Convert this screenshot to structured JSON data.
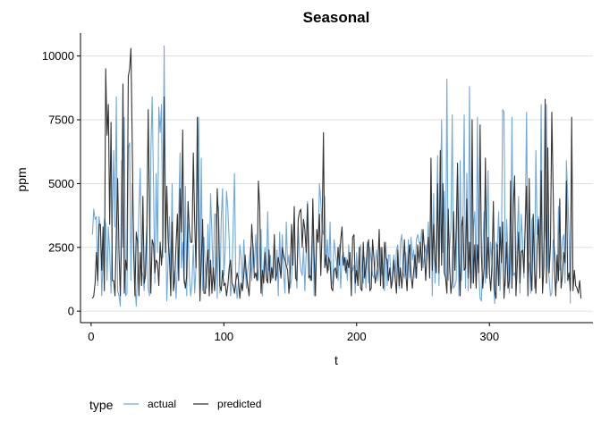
{
  "chart_data": {
    "type": "line",
    "title": "Seasonal",
    "xlabel": "t",
    "ylabel": "ppm",
    "xlim": [
      -8,
      378
    ],
    "ylim": [
      -450,
      10900
    ],
    "xticks": [
      0,
      100,
      200,
      300
    ],
    "xtick_labels": [
      "0",
      "100",
      "200",
      "300"
    ],
    "yticks": [
      0,
      2500,
      5000,
      7500,
      10000
    ],
    "ytick_labels": [
      "0",
      "2500",
      "5000",
      "7500",
      "10000"
    ],
    "grid": "horizontal-major",
    "legend": {
      "title": "type",
      "position": "bottom-left"
    },
    "series": [
      {
        "name": "actual",
        "color": "#6fa8dc",
        "x_start": 1,
        "values": [
          3000,
          4000,
          3600,
          3700,
          1000,
          3700,
          3300,
          600,
          2000,
          3600,
          3400,
          1200,
          3300,
          2300,
          700,
          3500,
          6300,
          3300,
          8400,
          800,
          600,
          200,
          5900,
          2500,
          7600,
          600,
          700,
          6400,
          6600,
          1200,
          5000,
          3000,
          1000,
          200,
          1600,
          4000,
          5600,
          1600,
          1400,
          800,
          2200,
          3300,
          900,
          600,
          6300,
          8400,
          4900,
          1100,
          5400,
          2300,
          8000,
          7000,
          8100,
          2100,
          10400,
          3900,
          400,
          2000,
          3700,
          1200,
          5000,
          1100,
          1600,
          500,
          1700,
          3800,
          6200,
          1700,
          2700,
          1100,
          4900,
          600,
          3400,
          1400,
          600,
          1100,
          2600,
          700,
          1700,
          5900,
          7600,
          900,
          6000,
          800,
          2900,
          1700,
          900,
          3400,
          1500,
          4600,
          3000,
          1200,
          3800,
          3800,
          500,
          4100,
          700,
          3600,
          4800,
          1400,
          2400,
          4700,
          4000,
          2800,
          600,
          1100,
          3300,
          5400,
          1100,
          500,
          1200,
          2600,
          2100,
          1000,
          2800,
          1800,
          900,
          1600,
          1900,
          2500,
          1200,
          2600,
          1700,
          3000,
          1700,
          1200,
          2400,
          3200,
          600,
          1800,
          2500,
          1200,
          3900,
          1600,
          2200,
          1200,
          1700,
          2800,
          1300,
          2400,
          600,
          3100,
          1500,
          3000,
          1500,
          700,
          3500,
          1800,
          2200,
          900,
          1300,
          2800,
          3600,
          1800,
          900,
          3300,
          2200,
          1600,
          1400,
          2500,
          800,
          2300,
          4300,
          2900,
          1200,
          2100,
          4000,
          600,
          1700,
          3200,
          2700,
          5000,
          4300,
          3200,
          3000,
          4500,
          1800,
          2800,
          1600,
          3500,
          1000,
          1200,
          2800,
          2300,
          1900,
          1200,
          2600,
          900,
          2100,
          2300,
          1600,
          2100,
          1200,
          2600,
          1700,
          1500,
          1600,
          1800,
          700,
          2300,
          1000,
          2300,
          2600,
          1600,
          1100,
          2100,
          900,
          2700,
          1100,
          2500,
          2000,
          1400,
          1300,
          1900,
          2400,
          1200,
          1800,
          2500,
          1500,
          1300,
          800,
          2700,
          1000,
          2200,
          2200,
          900,
          1500,
          2200,
          1300,
          2400,
          2600,
          900,
          2700,
          3000,
          1500,
          1300,
          2300,
          1400,
          2800,
          1300,
          2900,
          2000,
          2400,
          1300,
          2800,
          3000,
          2700,
          2600,
          3200,
          1700,
          2100,
          2600,
          2000,
          3500,
          1600,
          4500,
          600,
          4600,
          1100,
          2900,
          6100,
          1000,
          3700,
          7500,
          2300,
          4700,
          1300,
          9100,
          1200,
          2500,
          3200,
          7700,
          900,
          1000,
          1200,
          5400,
          600,
          5900,
          1200,
          2900,
          7700,
          900,
          5400,
          800,
          8800,
          1900,
          1100,
          3300,
          3900,
          1300,
          7600,
          1500,
          500,
          400,
          2300,
          3900,
          1100,
          3100,
          5500,
          1500,
          2700,
          1900,
          1200,
          300,
          2700,
          2500,
          3900,
          800,
          2200,
          7900,
          7800,
          1000,
          3600,
          2300,
          700,
          2000,
          7600,
          1400,
          1500,
          1200,
          3000,
          4500,
          700,
          3800,
          2800,
          1300,
          3500,
          7800,
          1200,
          1900,
          700,
          3600,
          3700,
          900,
          6300,
          3000,
          3700,
          2600,
          8100,
          1400,
          2500,
          3200,
          8100,
          1800,
          1300,
          600,
          700,
          2800,
          2400,
          1900,
          1100,
          4100,
          1600,
          2000,
          2800,
          3000,
          1100,
          5900,
          4500,
          3000,
          300
        ]
      },
      {
        "name": "predicted",
        "color": "#333333",
        "x_start": 1,
        "values": [
          500,
          600,
          1100,
          2300,
          1200,
          3400,
          3400,
          1600,
          3300,
          800,
          9500,
          6900,
          8100,
          3400,
          7400,
          1200,
          1200,
          600,
          3100,
          5200,
          2300,
          600,
          3000,
          8900,
          700,
          2000,
          1600,
          9200,
          9500,
          10300,
          6500,
          2400,
          600,
          3100,
          2700,
          600,
          2300,
          1000,
          4500,
          1100,
          1400,
          3300,
          7900,
          3600,
          700,
          2800,
          2600,
          1500,
          2000,
          1900,
          1000,
          2700,
          1800,
          2700,
          8400,
          2300,
          4900,
          2800,
          2100,
          600,
          3500,
          800,
          1300,
          2600,
          3800,
          1200,
          4800,
          3100,
          7100,
          1300,
          900,
          1400,
          4300,
          3200,
          2700,
          2700,
          6200,
          3500,
          1700,
          7600,
          3000,
          400,
          2000,
          3600,
          700,
          700,
          1800,
          2400,
          600,
          2000,
          700,
          1700,
          800,
          1800,
          4800,
          3500,
          1000,
          800,
          1600,
          1000,
          1100,
          600,
          1000,
          1700,
          2000,
          1100,
          1000,
          700,
          1200,
          1500,
          1200,
          500,
          1100,
          800,
          1400,
          2200,
          1400,
          1000,
          600,
          1700,
          3400,
          2400,
          1300,
          1500,
          1200,
          5100,
          4100,
          700,
          1600,
          1100,
          2300,
          1300,
          1100,
          2400,
          1100,
          1700,
          1300,
          3000,
          1200,
          1500,
          2100,
          1800,
          1300,
          2500,
          2200,
          2000,
          1800,
          1600,
          700,
          1600,
          3400,
          1800,
          4100,
          1300,
          1200,
          3600,
          3900,
          4000,
          2500,
          3600,
          3200,
          2300,
          4200,
          1300,
          1400,
          1200,
          4400,
          2100,
          600,
          3200,
          2700,
          3800,
          1400,
          3200,
          7000,
          1700,
          2200,
          1500,
          2100,
          1900,
          900,
          800,
          1600,
          1700,
          1300,
          2500,
          1800,
          2800,
          3300,
          1800,
          2100,
          1500,
          2000,
          1700,
          2300,
          600,
          2900,
          3000,
          1100,
          1600,
          1000,
          2500,
          900,
          800,
          2700,
          1300,
          1700,
          2400,
          2800,
          800,
          900,
          2800,
          2100,
          1100,
          1400,
          1800,
          3200,
          1000,
          2500,
          900,
          2700,
          2100,
          2000,
          1200,
          1700,
          900,
          1200,
          2000,
          1300,
          700,
          2400,
          1000,
          1700,
          900,
          1600,
          2800,
          1500,
          800,
          2100,
          2600,
          1400,
          900,
          1600,
          2200,
          1300,
          2600,
          1900,
          2700,
          1600,
          3200,
          2500,
          1200,
          2200,
          2900,
          1300,
          6000,
          1600,
          3400,
          2000,
          1500,
          5000,
          1500,
          6300,
          1800,
          5000,
          1500,
          1300,
          700,
          4000,
          1800,
          700,
          1200,
          3900,
          1600,
          3200,
          5800,
          2300,
          600,
          3300,
          3700,
          1600,
          1700,
          4400,
          1300,
          2700,
          900,
          7500,
          1100,
          2600,
          900,
          2600,
          1500,
          7300,
          2200,
          900,
          1700,
          6000,
          1300,
          2900,
          1500,
          800,
          1900,
          4300,
          800,
          500,
          2600,
          1000,
          3300,
          1900,
          3500,
          500,
          1400,
          2700,
          900,
          1200,
          5100,
          900,
          4100,
          5300,
          600,
          1800,
          3100,
          1100,
          2300,
          2400,
          1500,
          3400,
          4900,
          600,
          5200,
          1700,
          800,
          3800,
          1700,
          700,
          2600,
          3600,
          1300,
          5500,
          700,
          1700,
          8300,
          1100,
          6400,
          1500,
          2600,
          7800,
          4800,
          1600,
          600,
          2200,
          1200,
          4400,
          900,
          1400,
          2300,
          1900,
          5100,
          1200,
          1500,
          800,
          7600,
          800,
          1600,
          1000,
          900,
          700,
          1200,
          500
        ]
      }
    ]
  }
}
